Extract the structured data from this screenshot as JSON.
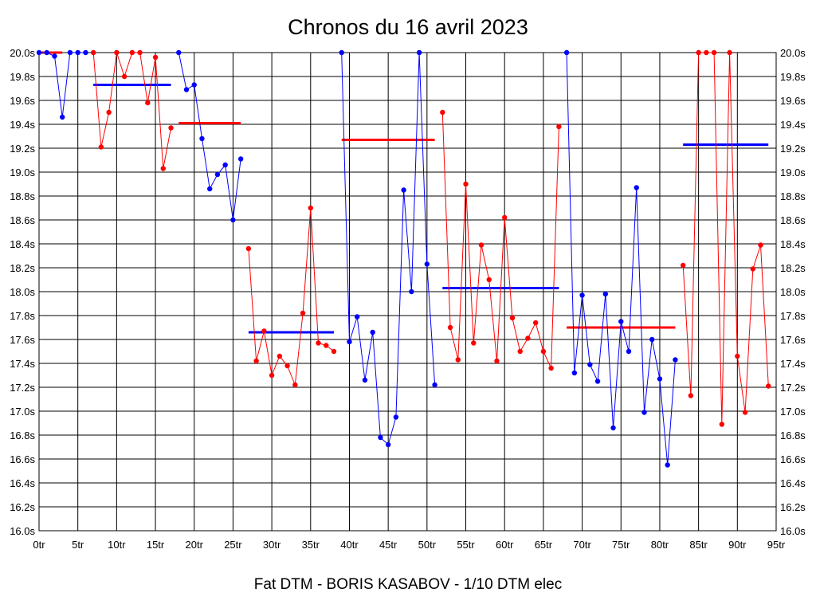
{
  "chart_data": {
    "type": "line",
    "title": "Chronos du 16 avril 2023",
    "footer": "Fat DTM - BORIS KASABOV - 1/10 DTM elec",
    "xlim": [
      0,
      95
    ],
    "ylim": [
      16.0,
      20.0
    ],
    "x_ticks": [
      "0tr",
      "5tr",
      "10tr",
      "15tr",
      "20tr",
      "25tr",
      "30tr",
      "35tr",
      "40tr",
      "45tr",
      "50tr",
      "55tr",
      "60tr",
      "65tr",
      "70tr",
      "75tr",
      "80tr",
      "85tr",
      "90tr",
      "95tr"
    ],
    "y_ticks": [
      "16.0s",
      "16.2s",
      "16.4s",
      "16.6s",
      "16.8s",
      "17.0s",
      "17.2s",
      "17.4s",
      "17.6s",
      "17.8s",
      "18.0s",
      "18.2s",
      "18.4s",
      "18.6s",
      "18.8s",
      "19.0s",
      "19.2s",
      "19.4s",
      "19.6s",
      "19.8s",
      "20.0s"
    ],
    "grid": true,
    "colors": {
      "blue": "#0000ff",
      "red": "#ff0000"
    },
    "series": [
      {
        "color": "blue",
        "x": [
          0,
          1,
          2,
          3,
          4,
          5,
          6
        ],
        "y": [
          20.0,
          20.0,
          19.97,
          19.46,
          20.0,
          20.0,
          20.0
        ],
        "average": 19.73
      },
      {
        "color": "red",
        "x": [
          7,
          8,
          9,
          10,
          11,
          12,
          13,
          14,
          15,
          16,
          17
        ],
        "y": [
          20.0,
          19.21,
          19.5,
          20.0,
          19.8,
          20.0,
          20.0,
          19.58,
          19.96,
          19.03,
          19.37
        ],
        "average": 19.41
      },
      {
        "color": "blue",
        "x": [
          18,
          19,
          20,
          21,
          22,
          23,
          24,
          25,
          26
        ],
        "y": [
          20.0,
          19.69,
          19.73,
          19.28,
          18.86,
          18.98,
          19.06,
          18.6,
          19.11
        ],
        "average": 17.66
      },
      {
        "color": "red",
        "x": [
          27,
          28,
          29,
          30,
          31,
          32,
          33,
          34,
          35,
          36,
          37,
          38
        ],
        "y": [
          18.36,
          17.42,
          17.67,
          17.3,
          17.46,
          17.38,
          17.22,
          17.82,
          18.7,
          17.57,
          17.55,
          17.5
        ],
        "average": 19.27
      },
      {
        "color": "blue",
        "x": [
          39,
          40,
          41,
          42,
          43,
          44,
          45,
          46,
          47,
          48,
          49,
          50,
          51
        ],
        "y": [
          20.0,
          17.58,
          17.79,
          17.26,
          17.66,
          16.78,
          16.72,
          16.95,
          18.85,
          18.0,
          20.0,
          18.23,
          17.22
        ],
        "average": 18.03
      },
      {
        "color": "red",
        "x": [
          52,
          53,
          54,
          55,
          56,
          57,
          58,
          59,
          60,
          61,
          62,
          63,
          64,
          65,
          66,
          67
        ],
        "y": [
          19.5,
          17.7,
          17.43,
          18.9,
          17.57,
          18.39,
          18.1,
          17.42,
          18.62,
          17.78,
          17.5,
          17.61,
          17.74,
          17.5,
          17.36,
          19.38
        ],
        "average": 17.7
      },
      {
        "color": "blue",
        "x": [
          68,
          69,
          70,
          71,
          72,
          73,
          74,
          75,
          76,
          77,
          78,
          79,
          80,
          81,
          82
        ],
        "y": [
          20.0,
          17.32,
          17.97,
          17.39,
          17.25,
          17.98,
          16.86,
          17.75,
          17.5,
          18.87,
          16.99,
          17.6,
          17.27,
          16.55,
          17.43
        ],
        "average": 19.23
      },
      {
        "color": "red",
        "x": [
          83,
          84,
          85,
          86,
          87,
          88,
          89,
          90,
          91,
          92,
          93,
          94
        ],
        "y": [
          18.22,
          17.13,
          20.0,
          20.0,
          20.0,
          16.89,
          20.0,
          17.46,
          16.99,
          18.19,
          18.39,
          17.21
        ]
      }
    ],
    "average_lines": [
      {
        "color": "red",
        "x": [
          0,
          3
        ],
        "y": 20.0
      },
      {
        "color": "blue",
        "x": [
          7,
          17
        ],
        "y": 19.73
      },
      {
        "color": "red",
        "x": [
          18,
          26
        ],
        "y": 19.41
      },
      {
        "color": "blue",
        "x": [
          27,
          38
        ],
        "y": 17.66
      },
      {
        "color": "red",
        "x": [
          39,
          51
        ],
        "y": 19.27
      },
      {
        "color": "blue",
        "x": [
          52,
          67
        ],
        "y": 18.03
      },
      {
        "color": "red",
        "x": [
          68,
          82
        ],
        "y": 17.7
      },
      {
        "color": "blue",
        "x": [
          83,
          94
        ],
        "y": 19.23
      }
    ]
  }
}
